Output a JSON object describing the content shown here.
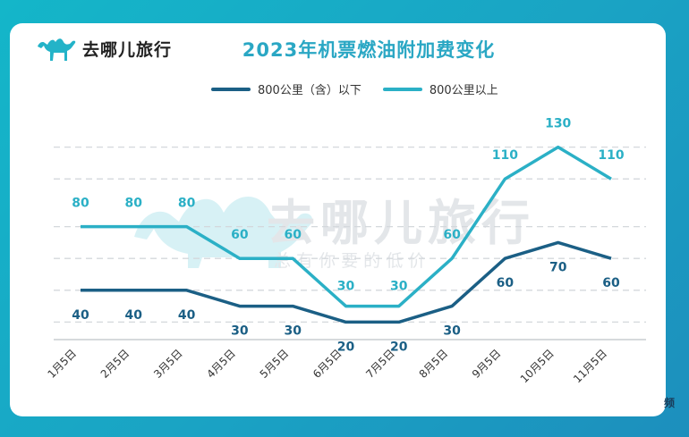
{
  "brand": {
    "name": "去哪儿旅行",
    "logo_icon": "camel-icon"
  },
  "watermark": {
    "name": "去哪儿旅行",
    "slogan": "总 有 你 要 的 低 价"
  },
  "corner_text": "频",
  "chart_data": {
    "type": "line",
    "title": "2023年机票燃油附加费变化",
    "categories": [
      "1月5日",
      "2月5日",
      "3月5日",
      "4月5日",
      "5月5日",
      "6月5日",
      "7月5日",
      "8月5日",
      "9月5日",
      "10月5日",
      "11月5日"
    ],
    "series": [
      {
        "name": "800公里（含）以下",
        "color": "#1b5f85",
        "values": [
          40,
          40,
          40,
          30,
          30,
          20,
          20,
          30,
          60,
          70,
          60
        ]
      },
      {
        "name": "800公里以上",
        "color": "#2bb0c6",
        "values": [
          80,
          80,
          80,
          60,
          60,
          30,
          30,
          60,
          110,
          130,
          110
        ]
      }
    ],
    "xlabel": "",
    "ylabel": "",
    "ylim": [
      0,
      130
    ],
    "grid": true,
    "legend_position": "top"
  }
}
